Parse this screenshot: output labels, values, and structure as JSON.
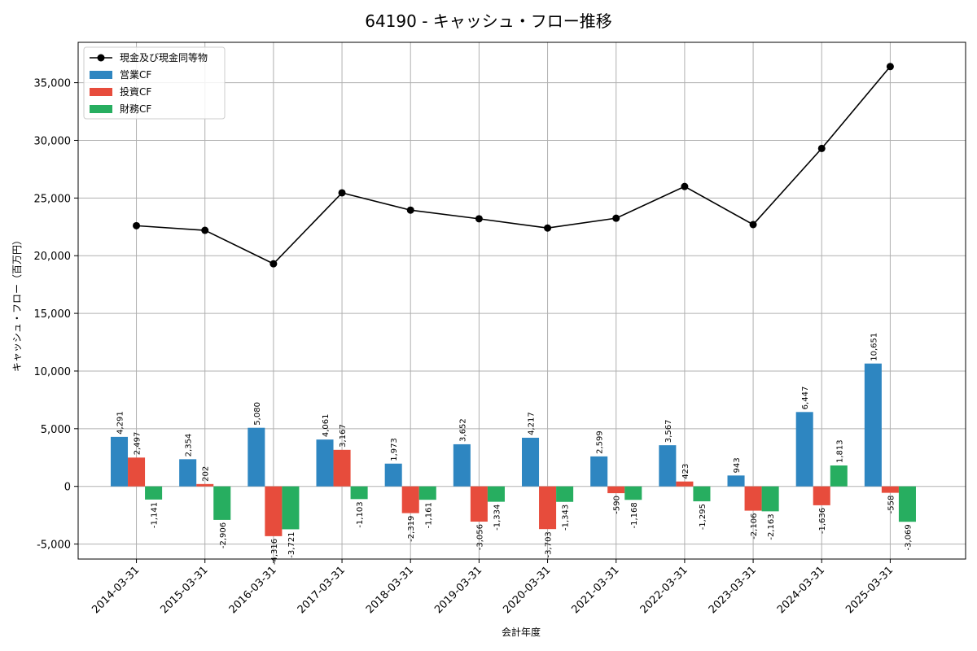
{
  "chart_data": {
    "type": "bar",
    "title": "64190 - キャッシュ・フロー推移",
    "xlabel": "会計年度",
    "ylabel": "キャッシュ・フロー（百万円）",
    "ylim": [
      -6300,
      38500
    ],
    "yticks": [
      -5000,
      0,
      5000,
      10000,
      15000,
      20000,
      25000,
      30000,
      35000
    ],
    "ytick_labels": [
      "-5,000",
      "0",
      "5,000",
      "10,000",
      "15,000",
      "20,000",
      "25,000",
      "30,000",
      "35,000"
    ],
    "grid": true,
    "legend_position": "top-left",
    "categories": [
      "2014-03-31",
      "2015-03-31",
      "2016-03-31",
      "2017-03-31",
      "2018-03-31",
      "2019-03-31",
      "2020-03-31",
      "2021-03-31",
      "2022-03-31",
      "2023-03-31",
      "2024-03-31",
      "2025-03-31"
    ],
    "line_series": {
      "name": "現金及び現金同等物",
      "color": "#000000",
      "values": [
        22600,
        22200,
        19300,
        25450,
        23950,
        23200,
        22400,
        23250,
        26000,
        22700,
        29300,
        36400
      ]
    },
    "series": [
      {
        "name": "営業CF",
        "color": "#2e86c1",
        "values": [
          4291,
          2354,
          5080,
          4061,
          1973,
          3652,
          4217,
          2599,
          3567,
          943,
          6447,
          10651
        ],
        "labels": [
          "4,291",
          "2,354",
          "5,080",
          "4,061",
          "1,973",
          "3,652",
          "4,217",
          "2,599",
          "3,567",
          "943",
          "6,447",
          "10,651"
        ]
      },
      {
        "name": "投資CF",
        "color": "#e74c3c",
        "values": [
          2497,
          202,
          -4316,
          3167,
          -2319,
          -3056,
          -3703,
          -590,
          423,
          -2106,
          -1636,
          -558
        ],
        "labels": [
          "2,497",
          "202",
          "-4,316",
          "3,167",
          "-2,319",
          "-3,056",
          "-3,703",
          "-590",
          "423",
          "-2,106",
          "-1,636",
          "-558"
        ]
      },
      {
        "name": "財務CF",
        "color": "#27ae60",
        "values": [
          -1141,
          -2906,
          -3721,
          -1103,
          -1161,
          -1334,
          -1343,
          -1168,
          -1295,
          -2163,
          1813,
          -3069
        ],
        "labels": [
          "-1,141",
          "-2,906",
          "-3,721",
          "-1,103",
          "-1,161",
          "-1,334",
          "-1,343",
          "-1,168",
          "-1,295",
          "-2,163",
          "1,813",
          "-3,069"
        ]
      }
    ]
  }
}
